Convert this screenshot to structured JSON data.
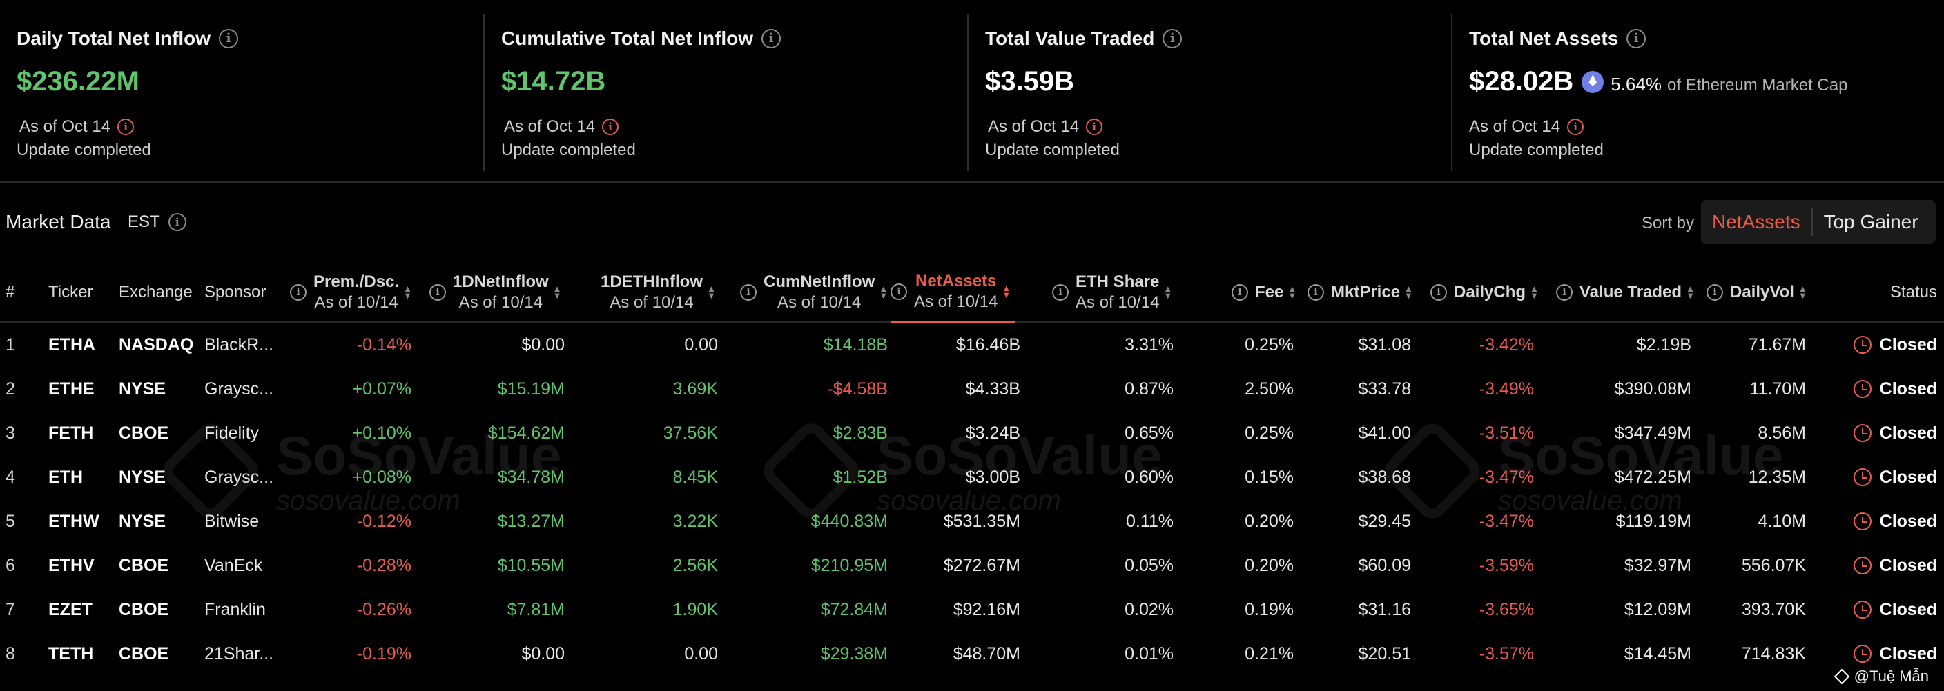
{
  "cards": [
    {
      "title": "Daily Total Net Inflow",
      "value": "$236.22M",
      "as_of": "As of Oct 14",
      "update": "Update completed"
    },
    {
      "title": "Cumulative Total Net Inflow",
      "value": "$14.72B",
      "as_of": "As of Oct 14",
      "update": "Update completed"
    },
    {
      "title": "Total Value Traded",
      "value": "$3.59B",
      "as_of": "As of Oct 14",
      "update": "Update completed"
    },
    {
      "title": "Total Net Assets",
      "value": "$28.02B",
      "pct": "5.64%",
      "pct_note": "of Ethereum Market Cap",
      "as_of": "As of Oct 14",
      "update": "Update completed"
    }
  ],
  "market": {
    "title": "Market Data",
    "timezone": "EST",
    "sort_label": "Sort by",
    "sort_options": [
      "NetAssets",
      "Top Gainer"
    ],
    "sort_active": "NetAssets"
  },
  "columns": {
    "idx": "#",
    "ticker": "Ticker",
    "exchange": "Exchange",
    "sponsor": "Sponsor",
    "prem": "Prem./Dsc.",
    "inflow_usd": "1DNetInflow",
    "inflow_eth": "1DETHInflow",
    "cum_inflow": "CumNetInflow",
    "net_assets": "NetAssets",
    "eth_share": "ETH Share",
    "fee": "Fee",
    "mkt_price": "MktPrice",
    "daily_chg": "DailyChg",
    "value_traded": "Value Traded",
    "daily_vol": "DailyVol",
    "status": "Status",
    "as_of": "As of 10/14"
  },
  "rows": [
    {
      "idx": "1",
      "ticker": "ETHA",
      "exchange": "NASDAQ",
      "sponsor": "BlackR...",
      "prem": "-0.14%",
      "inflow_usd": "$0.00",
      "inflow_eth": "0.00",
      "cum_inflow": "$14.18B",
      "net_assets": "$16.46B",
      "eth_share": "3.31%",
      "fee": "0.25%",
      "mkt_price": "$31.08",
      "daily_chg": "-3.42%",
      "value_traded": "$2.19B",
      "daily_vol": "71.67M",
      "status": "Closed"
    },
    {
      "idx": "2",
      "ticker": "ETHE",
      "exchange": "NYSE",
      "sponsor": "Graysc...",
      "prem": "+0.07%",
      "inflow_usd": "$15.19M",
      "inflow_eth": "3.69K",
      "cum_inflow": "-$4.58B",
      "net_assets": "$4.33B",
      "eth_share": "0.87%",
      "fee": "2.50%",
      "mkt_price": "$33.78",
      "daily_chg": "-3.49%",
      "value_traded": "$390.08M",
      "daily_vol": "11.70M",
      "status": "Closed"
    },
    {
      "idx": "3",
      "ticker": "FETH",
      "exchange": "CBOE",
      "sponsor": "Fidelity",
      "prem": "+0.10%",
      "inflow_usd": "$154.62M",
      "inflow_eth": "37.56K",
      "cum_inflow": "$2.83B",
      "net_assets": "$3.24B",
      "eth_share": "0.65%",
      "fee": "0.25%",
      "mkt_price": "$41.00",
      "daily_chg": "-3.51%",
      "value_traded": "$347.49M",
      "daily_vol": "8.56M",
      "status": "Closed"
    },
    {
      "idx": "4",
      "ticker": "ETH",
      "exchange": "NYSE",
      "sponsor": "Graysc...",
      "prem": "+0.08%",
      "inflow_usd": "$34.78M",
      "inflow_eth": "8.45K",
      "cum_inflow": "$1.52B",
      "net_assets": "$3.00B",
      "eth_share": "0.60%",
      "fee": "0.15%",
      "mkt_price": "$38.68",
      "daily_chg": "-3.47%",
      "value_traded": "$472.25M",
      "daily_vol": "12.35M",
      "status": "Closed"
    },
    {
      "idx": "5",
      "ticker": "ETHW",
      "exchange": "NYSE",
      "sponsor": "Bitwise",
      "prem": "-0.12%",
      "inflow_usd": "$13.27M",
      "inflow_eth": "3.22K",
      "cum_inflow": "$440.83M",
      "net_assets": "$531.35M",
      "eth_share": "0.11%",
      "fee": "0.20%",
      "mkt_price": "$29.45",
      "daily_chg": "-3.47%",
      "value_traded": "$119.19M",
      "daily_vol": "4.10M",
      "status": "Closed"
    },
    {
      "idx": "6",
      "ticker": "ETHV",
      "exchange": "CBOE",
      "sponsor": "VanEck",
      "prem": "-0.28%",
      "inflow_usd": "$10.55M",
      "inflow_eth": "2.56K",
      "cum_inflow": "$210.95M",
      "net_assets": "$272.67M",
      "eth_share": "0.05%",
      "fee": "0.20%",
      "mkt_price": "$60.09",
      "daily_chg": "-3.59%",
      "value_traded": "$32.97M",
      "daily_vol": "556.07K",
      "status": "Closed"
    },
    {
      "idx": "7",
      "ticker": "EZET",
      "exchange": "CBOE",
      "sponsor": "Franklin",
      "prem": "-0.26%",
      "inflow_usd": "$7.81M",
      "inflow_eth": "1.90K",
      "cum_inflow": "$72.84M",
      "net_assets": "$92.16M",
      "eth_share": "0.02%",
      "fee": "0.19%",
      "mkt_price": "$31.16",
      "daily_chg": "-3.65%",
      "value_traded": "$12.09M",
      "daily_vol": "393.70K",
      "status": "Closed"
    },
    {
      "idx": "8",
      "ticker": "TETH",
      "exchange": "CBOE",
      "sponsor": "21Shar...",
      "prem": "-0.19%",
      "inflow_usd": "$0.00",
      "inflow_eth": "0.00",
      "cum_inflow": "$29.38M",
      "net_assets": "$48.70M",
      "eth_share": "0.01%",
      "fee": "0.21%",
      "mkt_price": "$20.51",
      "daily_chg": "-3.57%",
      "value_traded": "$14.45M",
      "daily_vol": "714.83K",
      "status": "Closed"
    }
  ],
  "watermark": {
    "brand": "SoSoValue",
    "domain": "sosovalue.com"
  },
  "credit": "@Tuệ Mẫn",
  "colors": {
    "positive": "#5fc56a",
    "negative": "#e85a50",
    "accent": "#ef5a48",
    "background": "#000000"
  }
}
